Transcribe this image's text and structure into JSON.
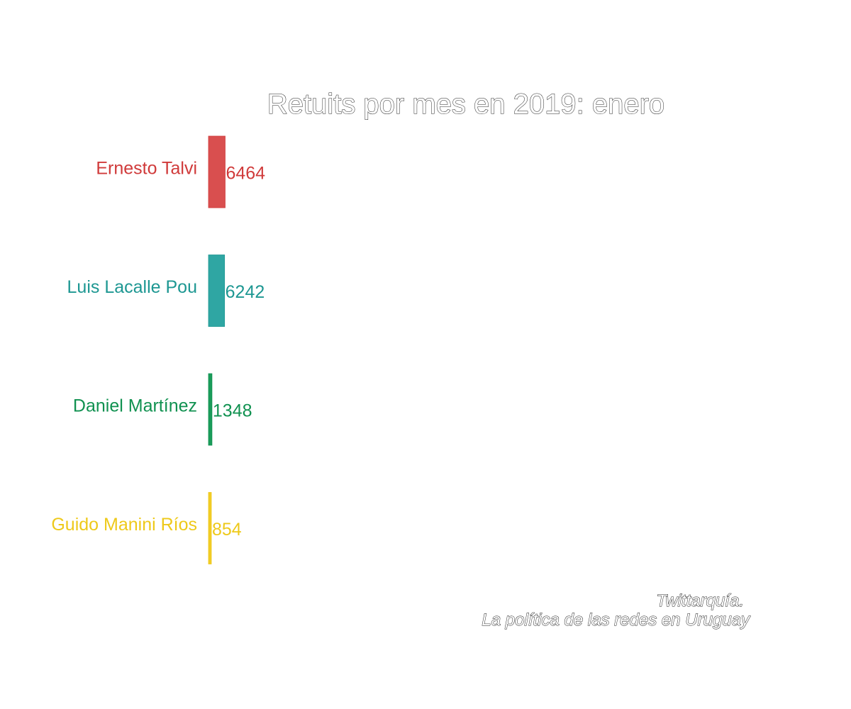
{
  "chart_data": {
    "type": "bar",
    "orientation": "horizontal",
    "title": "Retuits por mes en 2019: enero",
    "categories": [
      "Ernesto Talvi",
      "Luis Lacalle Pou",
      "Daniel Martínez",
      "Guido Manini Ríos"
    ],
    "values": [
      6464,
      6242,
      1348,
      854
    ],
    "value_labels": [
      "6464",
      "6242",
      "1348",
      "854"
    ],
    "colors": [
      "#d94f4f",
      "#2fa6a3",
      "#1a9c5a",
      "#f2cc25"
    ],
    "label_colors": [
      "#d03a3a",
      "#1d9792",
      "#109150",
      "#eec91a"
    ],
    "xlim": [
      0,
      222000
    ],
    "xlabel": "",
    "ylabel": "",
    "grid": false,
    "legend": "none",
    "caption": [
      "Twittarquía.",
      "La política de las redes en Uruguay"
    ]
  }
}
